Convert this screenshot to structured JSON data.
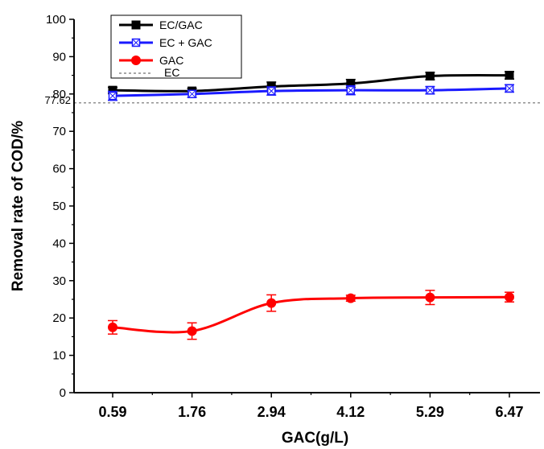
{
  "chart_data": {
    "type": "line",
    "title": "",
    "xlabel": "GAC(g/L)",
    "ylabel": "Removal rate of COD/%",
    "categories": [
      "0.59",
      "1.76",
      "2.94",
      "4.12",
      "5.29",
      "6.47"
    ],
    "ylim": [
      0,
      100
    ],
    "yticks": [
      0,
      10,
      20,
      30,
      40,
      50,
      60,
      70,
      80,
      90,
      100
    ],
    "grid": false,
    "legend_position": "top-left",
    "series": [
      {
        "name": "EC/GAC",
        "color": "#000000",
        "marker": "square",
        "values": [
          81.0,
          80.8,
          82.0,
          82.8,
          84.8,
          85.0
        ],
        "errors": [
          0.8,
          0.7,
          1.2,
          1.1,
          1.0,
          1.0
        ]
      },
      {
        "name": "EC + GAC",
        "color": "#1a1aff",
        "marker": "square-open",
        "values": [
          79.5,
          80.0,
          80.8,
          81.0,
          81.0,
          81.5
        ],
        "errors": [
          1.2,
          0.9,
          1.1,
          1.2,
          1.0,
          1.0
        ]
      },
      {
        "name": "GAC",
        "color": "#ff0000",
        "marker": "circle",
        "values": [
          17.5,
          16.5,
          24.0,
          25.3,
          25.5,
          25.6
        ],
        "errors": [
          1.8,
          2.2,
          2.2,
          0.8,
          1.9,
          1.3
        ]
      }
    ],
    "reference_line": {
      "name": "EC",
      "value": 77.62,
      "label": "77.62",
      "color": "#888888"
    }
  }
}
